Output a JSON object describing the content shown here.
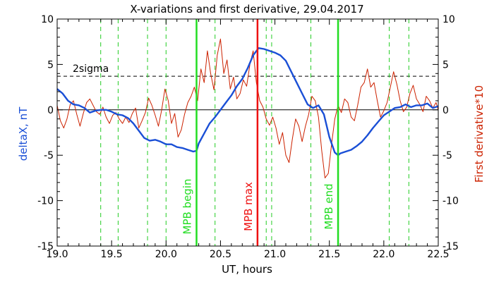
{
  "chart_data": {
    "type": "line",
    "title": "X-variations and first derivative, 29.04.2017",
    "xlabel": "UT, hours",
    "ylabel_left": "deltaX, nT",
    "ylabel_right": "First derivative*10",
    "xlim": [
      19.0,
      22.5
    ],
    "ylim": [
      -15,
      10
    ],
    "x_ticks": [
      "19.0",
      "19.5",
      "20.0",
      "20.5",
      "21.0",
      "21.5",
      "22.0",
      "22.5"
    ],
    "y_ticks_left": [
      "-15",
      "-10",
      "-5",
      "0",
      "5",
      "10"
    ],
    "y_ticks_right": [
      "-15",
      "-10",
      "-5",
      "0",
      "5",
      "10"
    ],
    "colors": {
      "deltax": "#1a4fd6",
      "derivative": "#cc2200",
      "mpb_boundary": "#22dd22",
      "mpb_max": "#ee1111",
      "left_label": "#1a4fd6",
      "right_label": "#cc2200",
      "dashed_vlines": "#22cc22"
    },
    "threshold": {
      "value": 3.7,
      "label": "2sigma"
    },
    "zero_line": 0,
    "dashed_vlines": [
      19.4,
      19.56,
      19.83,
      20.0,
      20.45,
      20.92,
      20.97,
      21.33,
      22.05,
      22.23
    ],
    "markers": [
      {
        "x": 20.28,
        "label": "MPB begin",
        "kind": "mpb_boundary"
      },
      {
        "x": 20.84,
        "label": "MPB max",
        "kind": "mpb_max"
      },
      {
        "x": 21.58,
        "label": "MPB end",
        "kind": "mpb_boundary"
      }
    ],
    "series": [
      {
        "x": [
          19.0,
          19.05,
          19.1,
          19.15,
          19.2,
          19.25,
          19.3,
          19.35,
          19.4,
          19.45,
          19.5,
          19.55,
          19.6,
          19.65,
          19.7,
          19.75,
          19.8,
          19.85,
          19.9,
          19.95,
          20.0,
          20.05,
          20.1,
          20.15,
          20.2,
          20.25,
          20.28,
          20.3,
          20.35,
          20.4,
          20.45,
          20.5,
          20.55,
          20.6,
          20.65,
          20.7,
          20.75,
          20.8,
          20.85,
          20.9,
          20.95,
          21.0,
          21.05,
          21.1,
          21.15,
          21.2,
          21.25,
          21.3,
          21.35,
          21.4,
          21.45,
          21.5,
          21.55,
          21.58,
          21.6,
          21.65,
          21.7,
          21.75,
          21.8,
          21.85,
          21.9,
          21.95,
          22.0,
          22.05,
          22.1,
          22.15,
          22.2,
          22.25,
          22.3,
          22.35,
          22.4,
          22.45,
          22.5
        ],
        "y": [
          2.3,
          1.8,
          1.0,
          0.6,
          0.5,
          0.2,
          -0.3,
          -0.1,
          0.0,
          0.0,
          -0.2,
          -0.5,
          -0.6,
          -0.9,
          -1.5,
          -2.3,
          -3.1,
          -3.4,
          -3.3,
          -3.5,
          -3.8,
          -3.8,
          -4.1,
          -4.2,
          -4.4,
          -4.6,
          -4.5,
          -3.7,
          -2.6,
          -1.5,
          -0.8,
          0.0,
          0.8,
          1.6,
          2.6,
          3.4,
          4.6,
          6.0,
          6.8,
          6.7,
          6.5,
          6.3,
          6.0,
          5.4,
          4.2,
          3.0,
          1.8,
          0.6,
          0.2,
          0.5,
          -0.5,
          -3.0,
          -4.7,
          -5.0,
          -4.8,
          -4.6,
          -4.4,
          -4.0,
          -3.5,
          -2.8,
          -2.0,
          -1.3,
          -0.6,
          -0.2,
          0.2,
          0.3,
          0.6,
          0.3,
          0.5,
          0.5,
          0.7,
          0.2,
          0.4
        ]
      },
      {
        "x": [
          19.0,
          19.03,
          19.06,
          19.09,
          19.12,
          19.15,
          19.18,
          19.21,
          19.24,
          19.27,
          19.3,
          19.33,
          19.36,
          19.39,
          19.42,
          19.45,
          19.48,
          19.51,
          19.54,
          19.57,
          19.6,
          19.63,
          19.66,
          19.69,
          19.72,
          19.75,
          19.78,
          19.81,
          19.84,
          19.87,
          19.9,
          19.93,
          19.96,
          19.99,
          20.02,
          20.05,
          20.08,
          20.11,
          20.14,
          20.17,
          20.2,
          20.23,
          20.26,
          20.29,
          20.32,
          20.35,
          20.38,
          20.41,
          20.44,
          20.47,
          20.5,
          20.53,
          20.56,
          20.59,
          20.62,
          20.65,
          20.68,
          20.71,
          20.74,
          20.77,
          20.8,
          20.83,
          20.86,
          20.89,
          20.92,
          20.95,
          20.98,
          21.01,
          21.04,
          21.07,
          21.1,
          21.13,
          21.16,
          21.19,
          21.22,
          21.25,
          21.28,
          21.31,
          21.34,
          21.37,
          21.4,
          21.43,
          21.46,
          21.49,
          21.52,
          21.55,
          21.58,
          21.61,
          21.64,
          21.67,
          21.7,
          21.73,
          21.76,
          21.79,
          21.82,
          21.85,
          21.88,
          21.91,
          21.94,
          21.97,
          22.0,
          22.03,
          22.06,
          22.09,
          22.12,
          22.15,
          22.18,
          22.21,
          22.24,
          22.27,
          22.3,
          22.33,
          22.36,
          22.39,
          22.42,
          22.45,
          22.48,
          22.5
        ],
        "y": [
          0.5,
          -1.2,
          -2.0,
          -1.0,
          0.6,
          1.0,
          -0.5,
          -1.8,
          -0.4,
          0.8,
          1.2,
          0.5,
          -0.2,
          -0.5,
          0.3,
          -0.8,
          -1.5,
          -0.6,
          -0.3,
          -1.0,
          -1.5,
          -0.8,
          -1.4,
          -0.4,
          0.2,
          -2.0,
          -1.2,
          -0.3,
          1.3,
          0.5,
          -0.6,
          -1.8,
          0.0,
          2.3,
          1.0,
          -1.5,
          -0.4,
          -3.0,
          -2.2,
          -0.5,
          0.8,
          1.5,
          2.5,
          1.0,
          4.5,
          3.0,
          6.5,
          4.0,
          2.2,
          6.0,
          7.8,
          4.0,
          5.5,
          2.3,
          3.6,
          1.2,
          1.8,
          3.3,
          2.6,
          5.0,
          6.5,
          3.0,
          1.0,
          0.3,
          -1.0,
          -1.7,
          -0.8,
          -2.0,
          -3.8,
          -2.5,
          -5.0,
          -5.8,
          -3.2,
          -1.0,
          -1.8,
          -3.5,
          -1.8,
          -0.5,
          1.5,
          1.0,
          -0.8,
          -4.5,
          -7.5,
          -7.0,
          -3.8,
          -1.0,
          0.5,
          -0.3,
          1.2,
          0.8,
          -0.8,
          -1.2,
          0.5,
          2.5,
          3.0,
          4.5,
          2.5,
          3.0,
          1.0,
          -0.8,
          -0.1,
          0.8,
          2.5,
          4.2,
          2.8,
          1.0,
          -0.2,
          0.3,
          1.8,
          2.7,
          1.2,
          0.6,
          -0.2,
          1.5,
          1.0,
          0.2,
          0.8,
          0.0
        ]
      }
    ]
  }
}
